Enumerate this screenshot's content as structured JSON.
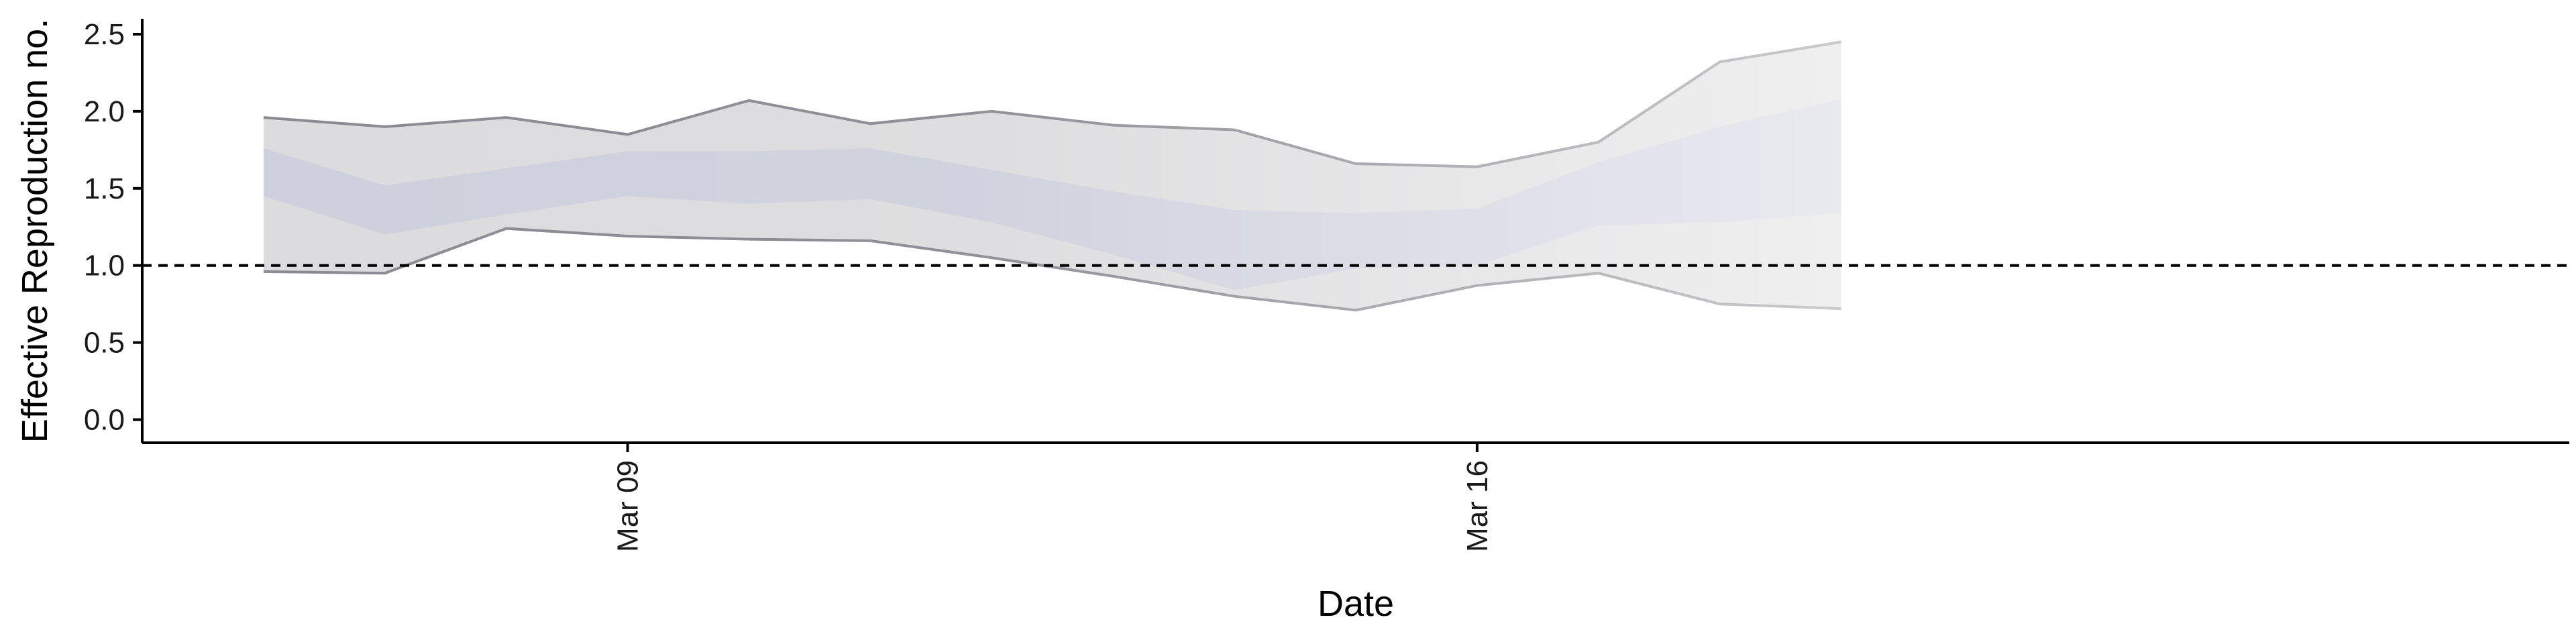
{
  "chart_data": {
    "type": "area",
    "xlabel": "Date",
    "ylabel": "Effective Reproduction no.",
    "ylim": [
      -0.15,
      2.6
    ],
    "yticks": [
      0.0,
      0.5,
      1.0,
      1.5,
      2.0,
      2.5
    ],
    "ytick_labels": [
      "0.0",
      "0.5",
      "1.0",
      "1.5",
      "2.0",
      "2.5"
    ],
    "xlim": [
      "2020-03-05",
      "2020-03-25"
    ],
    "xticks": [
      "2020-03-09",
      "2020-03-16"
    ],
    "xtick_labels": [
      "Mar 09",
      "Mar 16"
    ],
    "reference_line": {
      "y": 1.0,
      "style": "dashed"
    },
    "grid": false,
    "legend": "none",
    "dates": [
      "2020-03-06",
      "2020-03-07",
      "2020-03-08",
      "2020-03-09",
      "2020-03-10",
      "2020-03-11",
      "2020-03-12",
      "2020-03-13",
      "2020-03-14",
      "2020-03-15",
      "2020-03-16",
      "2020-03-17",
      "2020-03-18",
      "2020-03-19"
    ],
    "series": [
      {
        "upper": [
          1.96,
          1.9,
          1.96,
          1.85,
          2.07,
          1.92,
          2.0,
          1.91,
          1.88,
          1.66,
          1.64,
          1.8,
          2.32,
          2.45
        ],
        "lower": [
          0.96,
          0.95,
          1.24,
          1.19,
          1.17,
          1.16,
          1.05,
          0.93,
          0.8,
          0.71,
          0.87,
          0.95,
          0.75,
          0.72
        ],
        "color": "#8a8a92"
      },
      {
        "upper": [
          1.76,
          1.52,
          1.63,
          1.74,
          1.74,
          1.76,
          1.62,
          1.48,
          1.36,
          1.34,
          1.37,
          1.67,
          1.9,
          2.08
        ],
        "lower": [
          1.45,
          1.2,
          1.33,
          1.45,
          1.4,
          1.43,
          1.28,
          1.07,
          0.84,
          0.98,
          1.0,
          1.26,
          1.28,
          1.34
        ],
        "color": "#c6cadb"
      }
    ]
  }
}
